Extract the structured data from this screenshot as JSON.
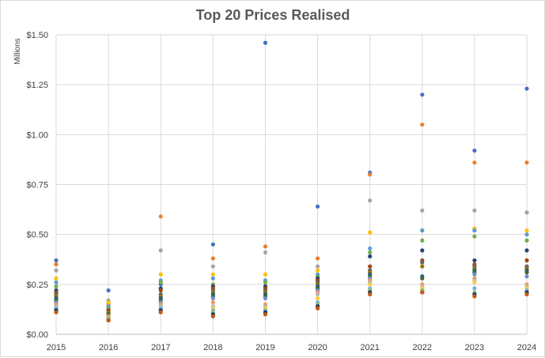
{
  "chart_data": {
    "type": "scatter",
    "title": "Top 20 Prices Realised",
    "yunit_label": "Millions",
    "xlabel": "",
    "ylabel": "",
    "xlim": [
      2015,
      2024
    ],
    "ylim": [
      0,
      1.5
    ],
    "x_ticks": [
      "2015",
      "2016",
      "2017",
      "2018",
      "2019",
      "2020",
      "2021",
      "2022",
      "2023",
      "2024"
    ],
    "y_ticks": [
      {
        "value": 0,
        "label": "$0.00"
      },
      {
        "value": 0.25,
        "label": "$0.25"
      },
      {
        "value": 0.5,
        "label": "$0.50"
      },
      {
        "value": 0.75,
        "label": "$0.75"
      },
      {
        "value": 1.0,
        "label": "$1.00"
      },
      {
        "value": 1.25,
        "label": "$1.25"
      },
      {
        "value": 1.5,
        "label": "$1.50"
      }
    ],
    "grid": true,
    "legend": "none",
    "series": [
      {
        "color": "#4472c4",
        "points": [
          [
            2015,
            0.37
          ],
          [
            2016,
            0.22
          ],
          [
            2017,
            0.25
          ],
          [
            2018,
            0.45
          ],
          [
            2019,
            1.46
          ],
          [
            2020,
            0.64
          ],
          [
            2021,
            0.81
          ],
          [
            2022,
            1.2
          ],
          [
            2023,
            0.92
          ],
          [
            2024,
            1.23
          ]
        ]
      },
      {
        "color": "#ed7d31",
        "points": [
          [
            2015,
            0.35
          ],
          [
            2016,
            0.15
          ],
          [
            2017,
            0.59
          ],
          [
            2018,
            0.38
          ],
          [
            2019,
            0.44
          ],
          [
            2020,
            0.38
          ],
          [
            2021,
            0.8
          ],
          [
            2022,
            1.05
          ],
          [
            2023,
            0.86
          ],
          [
            2024,
            0.86
          ]
        ]
      },
      {
        "color": "#a5a5a5",
        "points": [
          [
            2015,
            0.32
          ],
          [
            2016,
            0.17
          ],
          [
            2017,
            0.42
          ],
          [
            2018,
            0.34
          ],
          [
            2019,
            0.41
          ],
          [
            2020,
            0.34
          ],
          [
            2021,
            0.67
          ],
          [
            2022,
            0.62
          ],
          [
            2023,
            0.62
          ],
          [
            2024,
            0.61
          ]
        ]
      },
      {
        "color": "#ffc000",
        "points": [
          [
            2015,
            0.28
          ],
          [
            2016,
            0.16
          ],
          [
            2017,
            0.3
          ],
          [
            2018,
            0.3
          ],
          [
            2019,
            0.3
          ],
          [
            2020,
            0.32
          ],
          [
            2021,
            0.51
          ],
          [
            2022,
            0.52
          ],
          [
            2023,
            0.53
          ],
          [
            2024,
            0.52
          ]
        ]
      },
      {
        "color": "#5b9bd5",
        "points": [
          [
            2015,
            0.26
          ],
          [
            2016,
            0.14
          ],
          [
            2017,
            0.27
          ],
          [
            2018,
            0.28
          ],
          [
            2019,
            0.27
          ],
          [
            2020,
            0.3
          ],
          [
            2021,
            0.43
          ],
          [
            2022,
            0.52
          ],
          [
            2023,
            0.52
          ],
          [
            2024,
            0.5
          ]
        ]
      },
      {
        "color": "#70ad47",
        "points": [
          [
            2015,
            0.24
          ],
          [
            2016,
            0.13
          ],
          [
            2017,
            0.26
          ],
          [
            2018,
            0.25
          ],
          [
            2019,
            0.26
          ],
          [
            2020,
            0.29
          ],
          [
            2021,
            0.41
          ],
          [
            2022,
            0.47
          ],
          [
            2023,
            0.49
          ],
          [
            2024,
            0.47
          ]
        ]
      },
      {
        "color": "#264478",
        "points": [
          [
            2015,
            0.22
          ],
          [
            2016,
            0.12
          ],
          [
            2017,
            0.23
          ],
          [
            2018,
            0.24
          ],
          [
            2019,
            0.24
          ],
          [
            2020,
            0.28
          ],
          [
            2021,
            0.39
          ],
          [
            2022,
            0.42
          ],
          [
            2023,
            0.37
          ],
          [
            2024,
            0.42
          ]
        ]
      },
      {
        "color": "#9e480e",
        "points": [
          [
            2015,
            0.21
          ],
          [
            2016,
            0.12
          ],
          [
            2017,
            0.22
          ],
          [
            2018,
            0.23
          ],
          [
            2019,
            0.23
          ],
          [
            2020,
            0.27
          ],
          [
            2021,
            0.34
          ],
          [
            2022,
            0.37
          ],
          [
            2023,
            0.35
          ],
          [
            2024,
            0.37
          ]
        ]
      },
      {
        "color": "#636363",
        "points": [
          [
            2015,
            0.2
          ],
          [
            2016,
            0.11
          ],
          [
            2017,
            0.2
          ],
          [
            2018,
            0.22
          ],
          [
            2019,
            0.22
          ],
          [
            2020,
            0.26
          ],
          [
            2021,
            0.32
          ],
          [
            2022,
            0.36
          ],
          [
            2023,
            0.34
          ],
          [
            2024,
            0.34
          ]
        ]
      },
      {
        "color": "#997300",
        "points": [
          [
            2015,
            0.19
          ],
          [
            2016,
            0.11
          ],
          [
            2017,
            0.19
          ],
          [
            2018,
            0.21
          ],
          [
            2019,
            0.21
          ],
          [
            2020,
            0.25
          ],
          [
            2021,
            0.31
          ],
          [
            2022,
            0.34
          ],
          [
            2023,
            0.33
          ],
          [
            2024,
            0.33
          ]
        ]
      },
      {
        "color": "#255e91",
        "points": [
          [
            2015,
            0.18
          ],
          [
            2016,
            0.1
          ],
          [
            2017,
            0.18
          ],
          [
            2018,
            0.2
          ],
          [
            2019,
            0.2
          ],
          [
            2020,
            0.24
          ],
          [
            2021,
            0.3
          ],
          [
            2022,
            0.29
          ],
          [
            2023,
            0.32
          ],
          [
            2024,
            0.32
          ]
        ]
      },
      {
        "color": "#43682b",
        "points": [
          [
            2015,
            0.17
          ],
          [
            2016,
            0.1
          ],
          [
            2017,
            0.17
          ],
          [
            2018,
            0.19
          ],
          [
            2019,
            0.19
          ],
          [
            2020,
            0.23
          ],
          [
            2021,
            0.29
          ],
          [
            2022,
            0.28
          ],
          [
            2023,
            0.31
          ],
          [
            2024,
            0.31
          ]
        ]
      },
      {
        "color": "#698ed0",
        "points": [
          [
            2015,
            0.16
          ],
          [
            2016,
            0.09
          ],
          [
            2017,
            0.16
          ],
          [
            2018,
            0.18
          ],
          [
            2019,
            0.18
          ],
          [
            2020,
            0.22
          ],
          [
            2021,
            0.28
          ],
          [
            2022,
            0.25
          ],
          [
            2023,
            0.3
          ],
          [
            2024,
            0.29
          ]
        ]
      },
      {
        "color": "#f1975a",
        "points": [
          [
            2015,
            0.15
          ],
          [
            2016,
            0.09
          ],
          [
            2017,
            0.15
          ],
          [
            2018,
            0.16
          ],
          [
            2019,
            0.15
          ],
          [
            2020,
            0.21
          ],
          [
            2021,
            0.27
          ],
          [
            2022,
            0.25
          ],
          [
            2023,
            0.28
          ],
          [
            2024,
            0.25
          ]
        ]
      },
      {
        "color": "#b7b7b7",
        "points": [
          [
            2015,
            0.14
          ],
          [
            2016,
            0.08
          ],
          [
            2017,
            0.14
          ],
          [
            2018,
            0.14
          ],
          [
            2019,
            0.14
          ],
          [
            2020,
            0.2
          ],
          [
            2021,
            0.26
          ],
          [
            2022,
            0.24
          ],
          [
            2023,
            0.27
          ],
          [
            2024,
            0.24
          ]
        ]
      },
      {
        "color": "#ffcd33",
        "points": [
          [
            2015,
            0.13
          ],
          [
            2016,
            0.08
          ],
          [
            2017,
            0.13
          ],
          [
            2018,
            0.13
          ],
          [
            2019,
            0.13
          ],
          [
            2020,
            0.18
          ],
          [
            2021,
            0.25
          ],
          [
            2022,
            0.23
          ],
          [
            2023,
            0.26
          ],
          [
            2024,
            0.23
          ]
        ]
      },
      {
        "color": "#7cafdd",
        "points": [
          [
            2015,
            0.13
          ],
          [
            2016,
            0.08
          ],
          [
            2017,
            0.13
          ],
          [
            2018,
            0.12
          ],
          [
            2019,
            0.12
          ],
          [
            2020,
            0.16
          ],
          [
            2021,
            0.23
          ],
          [
            2022,
            0.22
          ],
          [
            2023,
            0.23
          ],
          [
            2024,
            0.22
          ]
        ]
      },
      {
        "color": "#8cc168",
        "points": [
          [
            2015,
            0.12
          ],
          [
            2016,
            0.08
          ],
          [
            2017,
            0.12
          ],
          [
            2018,
            0.11
          ],
          [
            2019,
            0.11
          ],
          [
            2020,
            0.15
          ],
          [
            2021,
            0.22
          ],
          [
            2022,
            0.22
          ],
          [
            2023,
            0.21
          ],
          [
            2024,
            0.21
          ]
        ]
      },
      {
        "color": "#1f3864",
        "points": [
          [
            2015,
            0.12
          ],
          [
            2016,
            0.07
          ],
          [
            2017,
            0.12
          ],
          [
            2018,
            0.1
          ],
          [
            2019,
            0.11
          ],
          [
            2020,
            0.14
          ],
          [
            2021,
            0.21
          ],
          [
            2022,
            0.21
          ],
          [
            2023,
            0.2
          ],
          [
            2024,
            0.21
          ]
        ]
      },
      {
        "color": "#c55a11",
        "points": [
          [
            2015,
            0.11
          ],
          [
            2016,
            0.07
          ],
          [
            2017,
            0.11
          ],
          [
            2018,
            0.09
          ],
          [
            2019,
            0.1
          ],
          [
            2020,
            0.13
          ],
          [
            2021,
            0.2
          ],
          [
            2022,
            0.21
          ],
          [
            2023,
            0.19
          ],
          [
            2024,
            0.2
          ]
        ]
      }
    ]
  }
}
